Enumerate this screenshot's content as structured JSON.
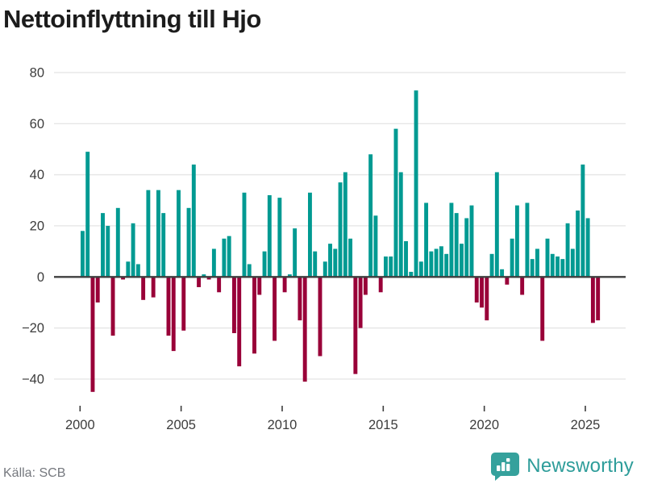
{
  "title": "Nettoinflyttning till Hjo",
  "source": "Källa: SCB",
  "brand": {
    "name": "Newsworthy"
  },
  "colors": {
    "positive_bar": "#009a92",
    "negative_bar": "#990038",
    "grid_line": "#e6e6e6",
    "zero_line": "#3f3f3f",
    "axis_text": "#3c3c3c",
    "title_text": "#1c1c1c",
    "source_text": "#75787e",
    "brand_teal": "#2e9d9a"
  },
  "chart_data": {
    "type": "bar",
    "title": "Nettoinflyttning till Hjo",
    "frequency": "quarterly",
    "xlabel": "",
    "ylabel": "",
    "ylim": [
      -50,
      85
    ],
    "yticks": [
      80,
      60,
      40,
      20,
      0,
      -20,
      -40
    ],
    "xticks": [
      2000,
      2005,
      2010,
      2015,
      2020,
      2025
    ],
    "grid": true,
    "legend": "none",
    "series_by_year": [
      {
        "year": 2000,
        "values": [
          18,
          49,
          -45,
          -10
        ]
      },
      {
        "year": 2001,
        "values": [
          25,
          20,
          -23,
          27
        ]
      },
      {
        "year": 2002,
        "values": [
          -1,
          6,
          21,
          5
        ]
      },
      {
        "year": 2003,
        "values": [
          -9,
          34,
          -8,
          34
        ]
      },
      {
        "year": 2004,
        "values": [
          25,
          -23,
          -29,
          34
        ]
      },
      {
        "year": 2005,
        "values": [
          -21,
          27,
          44,
          -4
        ]
      },
      {
        "year": 2006,
        "values": [
          1,
          -1,
          11,
          -6
        ]
      },
      {
        "year": 2007,
        "values": [
          15,
          16,
          -22,
          -35
        ]
      },
      {
        "year": 2008,
        "values": [
          33,
          5,
          -30,
          -7
        ]
      },
      {
        "year": 2009,
        "values": [
          10,
          32,
          -25,
          31
        ]
      },
      {
        "year": 2010,
        "values": [
          -6,
          1,
          19,
          -17
        ]
      },
      {
        "year": 2011,
        "values": [
          -41,
          33,
          10,
          -31
        ]
      },
      {
        "year": 2012,
        "values": [
          6,
          13,
          11,
          37
        ]
      },
      {
        "year": 2013,
        "values": [
          41,
          15,
          -38,
          -20
        ]
      },
      {
        "year": 2014,
        "values": [
          -7,
          48,
          24,
          -6
        ]
      },
      {
        "year": 2015,
        "values": [
          8,
          8,
          58,
          41
        ]
      },
      {
        "year": 2016,
        "values": [
          14,
          2,
          73,
          6
        ]
      },
      {
        "year": 2017,
        "values": [
          29,
          10,
          11,
          12
        ]
      },
      {
        "year": 2018,
        "values": [
          9,
          29,
          25,
          13
        ]
      },
      {
        "year": 2019,
        "values": [
          23,
          28,
          -10,
          -12
        ]
      },
      {
        "year": 2020,
        "values": [
          -17,
          9,
          41,
          3
        ]
      },
      {
        "year": 2021,
        "values": [
          -3,
          15,
          28,
          -7
        ]
      },
      {
        "year": 2022,
        "values": [
          29,
          7,
          11,
          -25
        ]
      },
      {
        "year": 2023,
        "values": [
          15,
          9,
          8,
          7
        ]
      },
      {
        "year": 2024,
        "values": [
          21,
          11,
          26,
          44
        ]
      },
      {
        "year": 2025,
        "values": [
          23,
          -18,
          -17
        ]
      }
    ]
  }
}
